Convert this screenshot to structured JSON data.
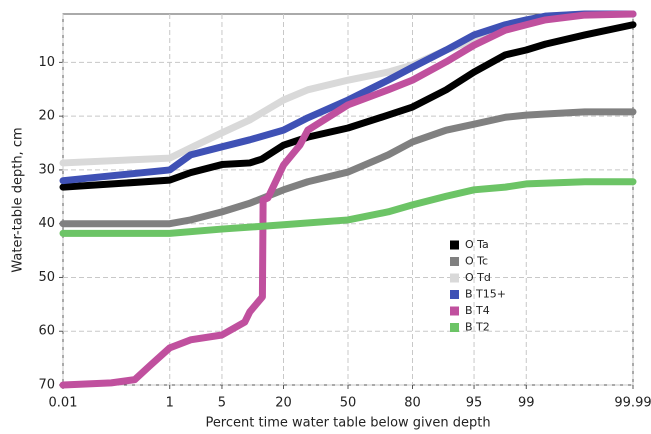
{
  "chart_data": {
    "type": "line",
    "x_label": "Percent time water table below given depth",
    "y_label": "Water-table depth, cm",
    "x_scale": "probability",
    "y_inverted": true,
    "xlim": [
      0.01,
      99.99
    ],
    "xticks": [
      0.01,
      1,
      5,
      20,
      50,
      80,
      95,
      99,
      99.99
    ],
    "ylim": [
      70,
      1
    ],
    "yticks": [
      10,
      20,
      30,
      40,
      50,
      60,
      70
    ],
    "grid": true,
    "legend": "right",
    "series": [
      {
        "name": "O Ta",
        "color": "#000000",
        "x": [
          0.01,
          1,
          2,
          5,
          10,
          13,
          20,
          30,
          50,
          70,
          80,
          90,
          95,
          98,
          99,
          99.5,
          99.9,
          99.99
        ],
        "values": [
          33.2,
          31.9,
          30.5,
          29,
          28.7,
          28,
          25.4,
          23.9,
          22.2,
          19.8,
          18.3,
          15.1,
          11.8,
          8.6,
          7.7,
          6.6,
          4.9,
          3
        ]
      },
      {
        "name": "O Tc",
        "color": "#808080",
        "x": [
          0.01,
          1,
          2,
          5,
          10,
          20,
          30,
          50,
          70,
          80,
          90,
          95,
          98,
          99,
          99.5,
          99.9,
          99.99
        ],
        "values": [
          40,
          40,
          39.3,
          37.8,
          36.2,
          33.7,
          32.2,
          30.4,
          27.2,
          24.8,
          22.6,
          21.5,
          20.2,
          19.8,
          19.6,
          19.2,
          19.2
        ]
      },
      {
        "name": "O Td",
        "color": "#d9d9d9",
        "x": [
          0.01,
          1,
          2,
          5,
          10,
          20,
          30,
          50,
          70,
          80,
          90,
          95,
          98,
          99,
          99.5,
          99.9
        ],
        "values": [
          28.7,
          27.8,
          25.9,
          23.1,
          20.7,
          17,
          15.1,
          13.3,
          11.8,
          10.5,
          7.7,
          5.8,
          4,
          2.5,
          1.4,
          1
        ]
      },
      {
        "name": "B T15+",
        "color": "#3f51b5",
        "x": [
          0.01,
          1,
          2,
          5,
          10,
          20,
          30,
          50,
          70,
          80,
          90,
          95,
          98,
          99,
          99.5,
          99.9,
          99.99
        ],
        "values": [
          32,
          30,
          27.2,
          25.7,
          24.4,
          22.6,
          20.3,
          17,
          13.3,
          10.9,
          7.7,
          4.9,
          3,
          2.1,
          1.4,
          1,
          1
        ]
      },
      {
        "name": "B T4",
        "color": "#c0509e",
        "x": [
          0.01,
          0.1,
          0.27,
          0.5,
          1,
          2,
          5,
          8.9,
          10,
          13.2,
          13.4,
          14.8,
          20,
          26.5,
          30,
          50,
          70,
          80,
          90,
          95,
          98,
          99,
          99.5,
          99.9,
          99.99
        ],
        "values": [
          70,
          69.6,
          69,
          66.3,
          63.1,
          61.6,
          60.7,
          58.3,
          56.4,
          53.6,
          35.6,
          35.2,
          29.1,
          25.4,
          22.6,
          17.9,
          15.1,
          13.3,
          9.9,
          6.8,
          4,
          3,
          2.1,
          1.2,
          1
        ]
      },
      {
        "name": "B T2",
        "color": "#6cc466",
        "x": [
          0.01,
          1,
          5,
          20,
          50,
          70,
          80,
          90,
          95,
          98,
          99,
          99.9,
          99.99
        ],
        "values": [
          41.8,
          41.8,
          41,
          40.2,
          39.3,
          37.8,
          36.5,
          34.9,
          33.7,
          33.2,
          32.6,
          32.2,
          32.2
        ]
      }
    ]
  }
}
